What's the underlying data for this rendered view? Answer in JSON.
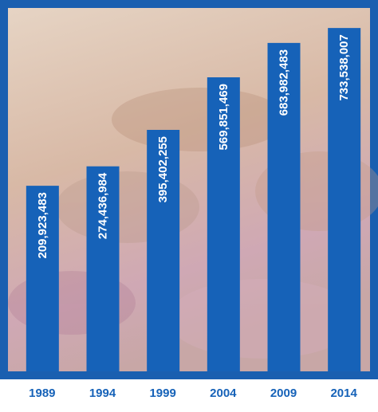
{
  "chart_data": {
    "type": "bar",
    "categories": [
      "1989",
      "1994",
      "1999",
      "2004",
      "2009",
      "2014"
    ],
    "values": [
      209923483,
      274436984,
      395402255,
      569851469,
      683982483,
      733538007
    ],
    "value_labels": [
      "209,923,483",
      "274,436,984",
      "395,402,255",
      "569,851,469",
      "683,982,483",
      "733,538,007"
    ],
    "color": "#1662b8",
    "ylim": [
      -406000000,
      800000000
    ]
  }
}
